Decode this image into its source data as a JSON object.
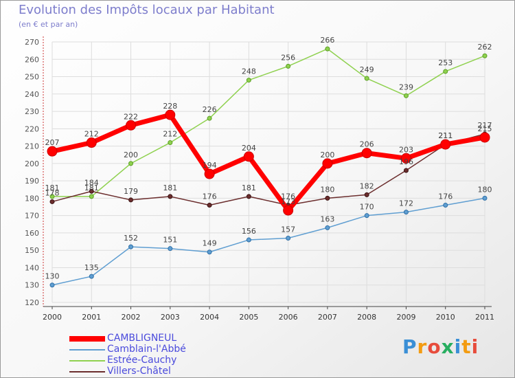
{
  "title": "Evolution des Impôts locaux par Habitant",
  "subtitle": "(en € et par an)",
  "brand": "Proxiti",
  "chart_data": {
    "type": "line",
    "title": "Evolution des Impôts locaux par Habitant",
    "subtitle": "(en € et par an)",
    "xlabel": "",
    "ylabel": "",
    "ylim": [
      120,
      270
    ],
    "ytick_step": 10,
    "categories": [
      "2000",
      "2001",
      "2002",
      "2003",
      "2004",
      "2005",
      "2006",
      "2007",
      "2008",
      "2009",
      "2010",
      "2011"
    ],
    "legend_position": "bottom-left",
    "series": [
      {
        "name": "CAMBLIGNEUL",
        "color": "#ff0000",
        "values": [
          207,
          212,
          222,
          228,
          194,
          204,
          173,
          200,
          206,
          203,
          211,
          215
        ],
        "labels": [
          "207",
          "212",
          "222",
          "228",
          "194",
          "204",
          "173",
          "200",
          "206",
          "203",
          "211",
          "215"
        ]
      },
      {
        "name": "Camblain-l'Abbé",
        "color": "#5f9ed1",
        "values": [
          130,
          135,
          152,
          151,
          149,
          156,
          157,
          163,
          170,
          172,
          176,
          180
        ],
        "labels": [
          "130",
          "135",
          "152",
          "151",
          "149",
          "156",
          "157",
          "163",
          "170",
          "172",
          "176",
          "180"
        ]
      },
      {
        "name": "Estrée-Cauchy",
        "color": "#8fd14f",
        "values": [
          181,
          181,
          200,
          212,
          226,
          248,
          256,
          266,
          249,
          239,
          253,
          262
        ],
        "labels": [
          "181",
          "181",
          "200",
          "212",
          "226",
          "248",
          "256",
          "266",
          "249",
          "239",
          "253",
          "262"
        ]
      },
      {
        "name": "Villers-Châtel",
        "color": "#6b2d2d",
        "values": [
          178,
          184,
          179,
          181,
          176,
          181,
          176,
          180,
          182,
          196,
          211,
          217
        ],
        "labels": [
          "178",
          "184",
          "179",
          "181",
          "176",
          "181",
          "176",
          "180",
          "182",
          "196",
          "211",
          "217"
        ]
      }
    ]
  }
}
